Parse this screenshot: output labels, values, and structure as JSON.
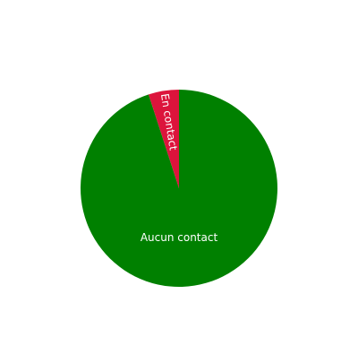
{
  "chart_data": {
    "type": "pie",
    "categories": [
      "Aucun contact",
      "En contact"
    ],
    "values": [
      95,
      5
    ],
    "colors": [
      "#008000",
      "#dc143c"
    ],
    "title": "",
    "legend": "none"
  }
}
